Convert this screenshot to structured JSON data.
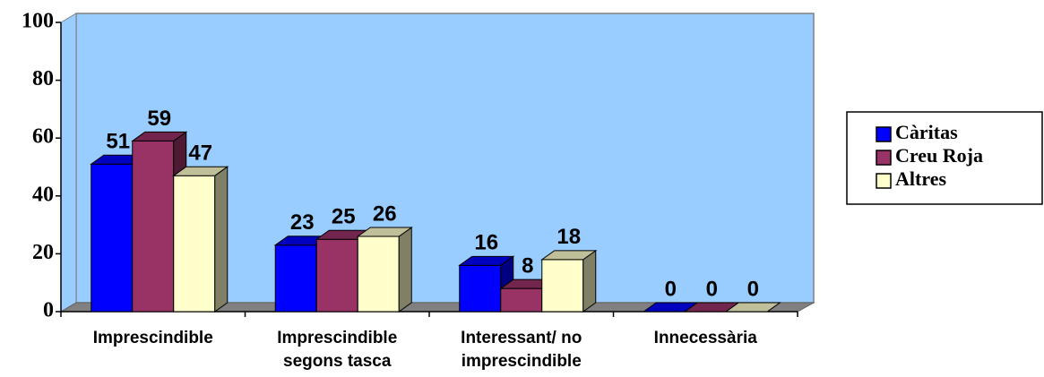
{
  "chart_data": {
    "type": "bar",
    "categories": [
      [
        "Imprescindible"
      ],
      [
        "Imprescindible",
        "segons tasca"
      ],
      [
        "Interessant/ no",
        "imprescindible"
      ],
      [
        "Innecessària"
      ]
    ],
    "series": [
      {
        "name": "Càritas",
        "color": "#0000ff",
        "values": [
          51,
          23,
          16,
          0
        ]
      },
      {
        "name": "Creu Roja",
        "color": "#993366",
        "values": [
          59,
          25,
          8,
          0
        ]
      },
      {
        "name": "Altres",
        "color": "#ffffcc",
        "values": [
          47,
          26,
          18,
          0
        ]
      }
    ],
    "ylim": [
      0,
      100
    ],
    "yticks": [
      0,
      20,
      40,
      60,
      80,
      100
    ],
    "legend": "right"
  }
}
